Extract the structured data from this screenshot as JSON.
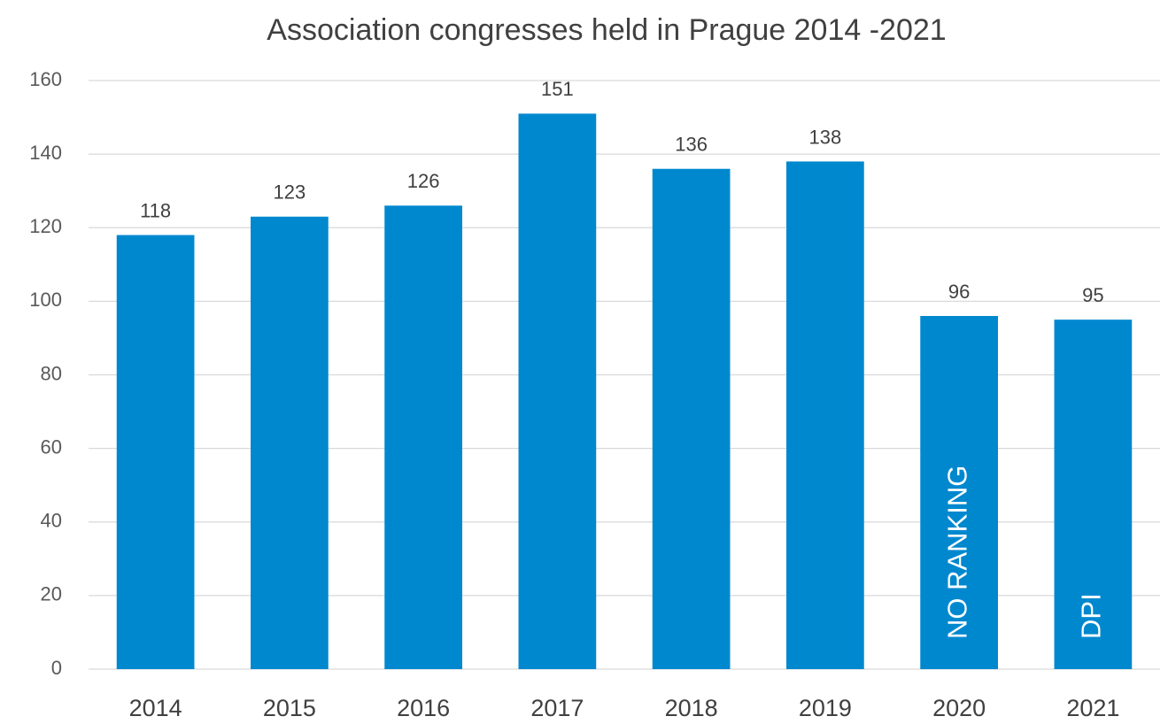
{
  "chart_data": {
    "type": "bar",
    "title": "Association congresses held in Prague 2014 -2021",
    "categories": [
      "2014",
      "2015",
      "2016",
      "2017",
      "2018",
      "2019",
      "2020",
      "2021"
    ],
    "values": [
      118,
      123,
      126,
      151,
      136,
      138,
      96,
      95
    ],
    "color": "#0088cf",
    "ylim": [
      0,
      160
    ],
    "yticks": [
      0,
      20,
      40,
      60,
      80,
      100,
      120,
      140,
      160
    ],
    "grid": true,
    "annotations": [
      {
        "text": "NO RANKING",
        "category": "2020"
      },
      {
        "text": "DPI",
        "category": "2021"
      }
    ]
  }
}
